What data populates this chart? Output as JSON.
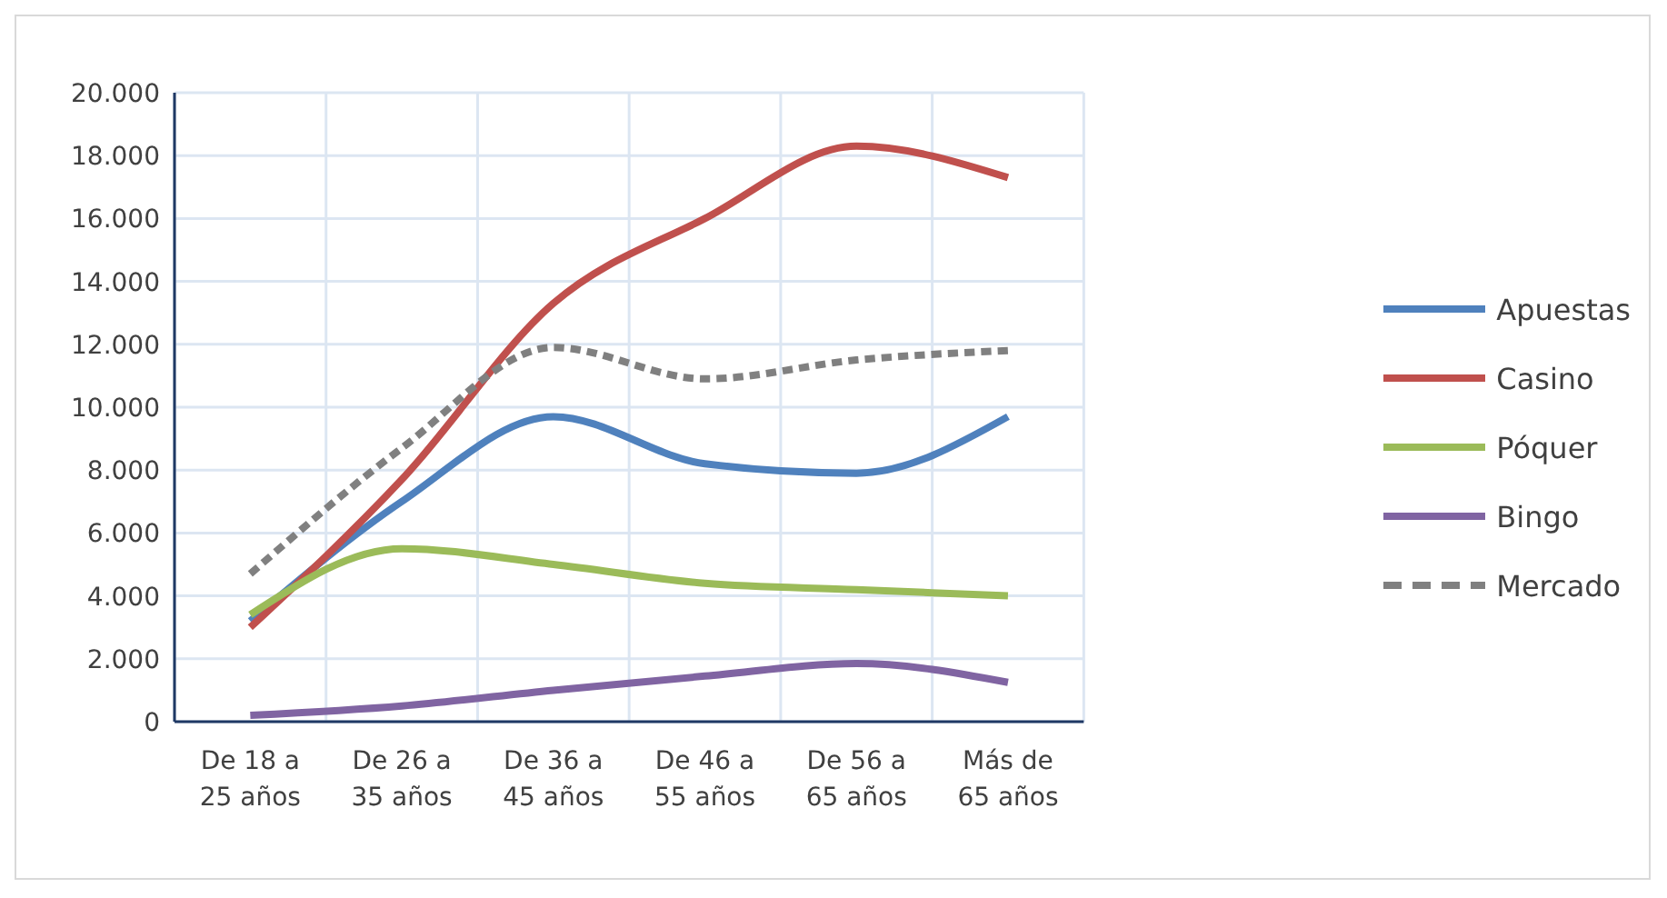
{
  "chart_data": {
    "type": "line",
    "categories": [
      "De 18 a 25 años",
      "De 26 a 35 años",
      "De 36 a 45 años",
      "De 46 a 55 años",
      "De 56 a 65 años",
      "Más de 65 años"
    ],
    "series": [
      {
        "name": "Apuestas",
        "color": "#4f81bd",
        "values": [
          3200,
          7000,
          9700,
          8200,
          7900,
          9700
        ]
      },
      {
        "name": "Casino",
        "color": "#c0504d",
        "values": [
          3000,
          7700,
          13300,
          16000,
          18300,
          17300
        ]
      },
      {
        "name": "Póquer",
        "color": "#9bbb59",
        "values": [
          3400,
          5500,
          5000,
          4400,
          4200,
          4000
        ]
      },
      {
        "name": "Bingo",
        "color": "#8064a2",
        "values": [
          200,
          500,
          1000,
          1450,
          1850,
          1250
        ]
      },
      {
        "name": "Mercado",
        "color": "#808080",
        "line_style": "dashed",
        "values": [
          4700,
          8700,
          11900,
          10900,
          11500,
          11800
        ]
      }
    ],
    "ylim": [
      0,
      20000
    ],
    "yticks": [
      {
        "value": 0,
        "label": "0"
      },
      {
        "value": 2000,
        "label": "2.000"
      },
      {
        "value": 4000,
        "label": "4.000"
      },
      {
        "value": 6000,
        "label": "6.000"
      },
      {
        "value": 8000,
        "label": "8.000"
      },
      {
        "value": 10000,
        "label": "10.000"
      },
      {
        "value": 12000,
        "label": "12.000"
      },
      {
        "value": 14000,
        "label": "14.000"
      },
      {
        "value": 16000,
        "label": "16.000"
      },
      {
        "value": 18000,
        "label": "18.000"
      },
      {
        "value": 20000,
        "label": "20.000"
      }
    ],
    "grid": true,
    "legend": "right",
    "marker": "none",
    "line_style": "solid"
  }
}
